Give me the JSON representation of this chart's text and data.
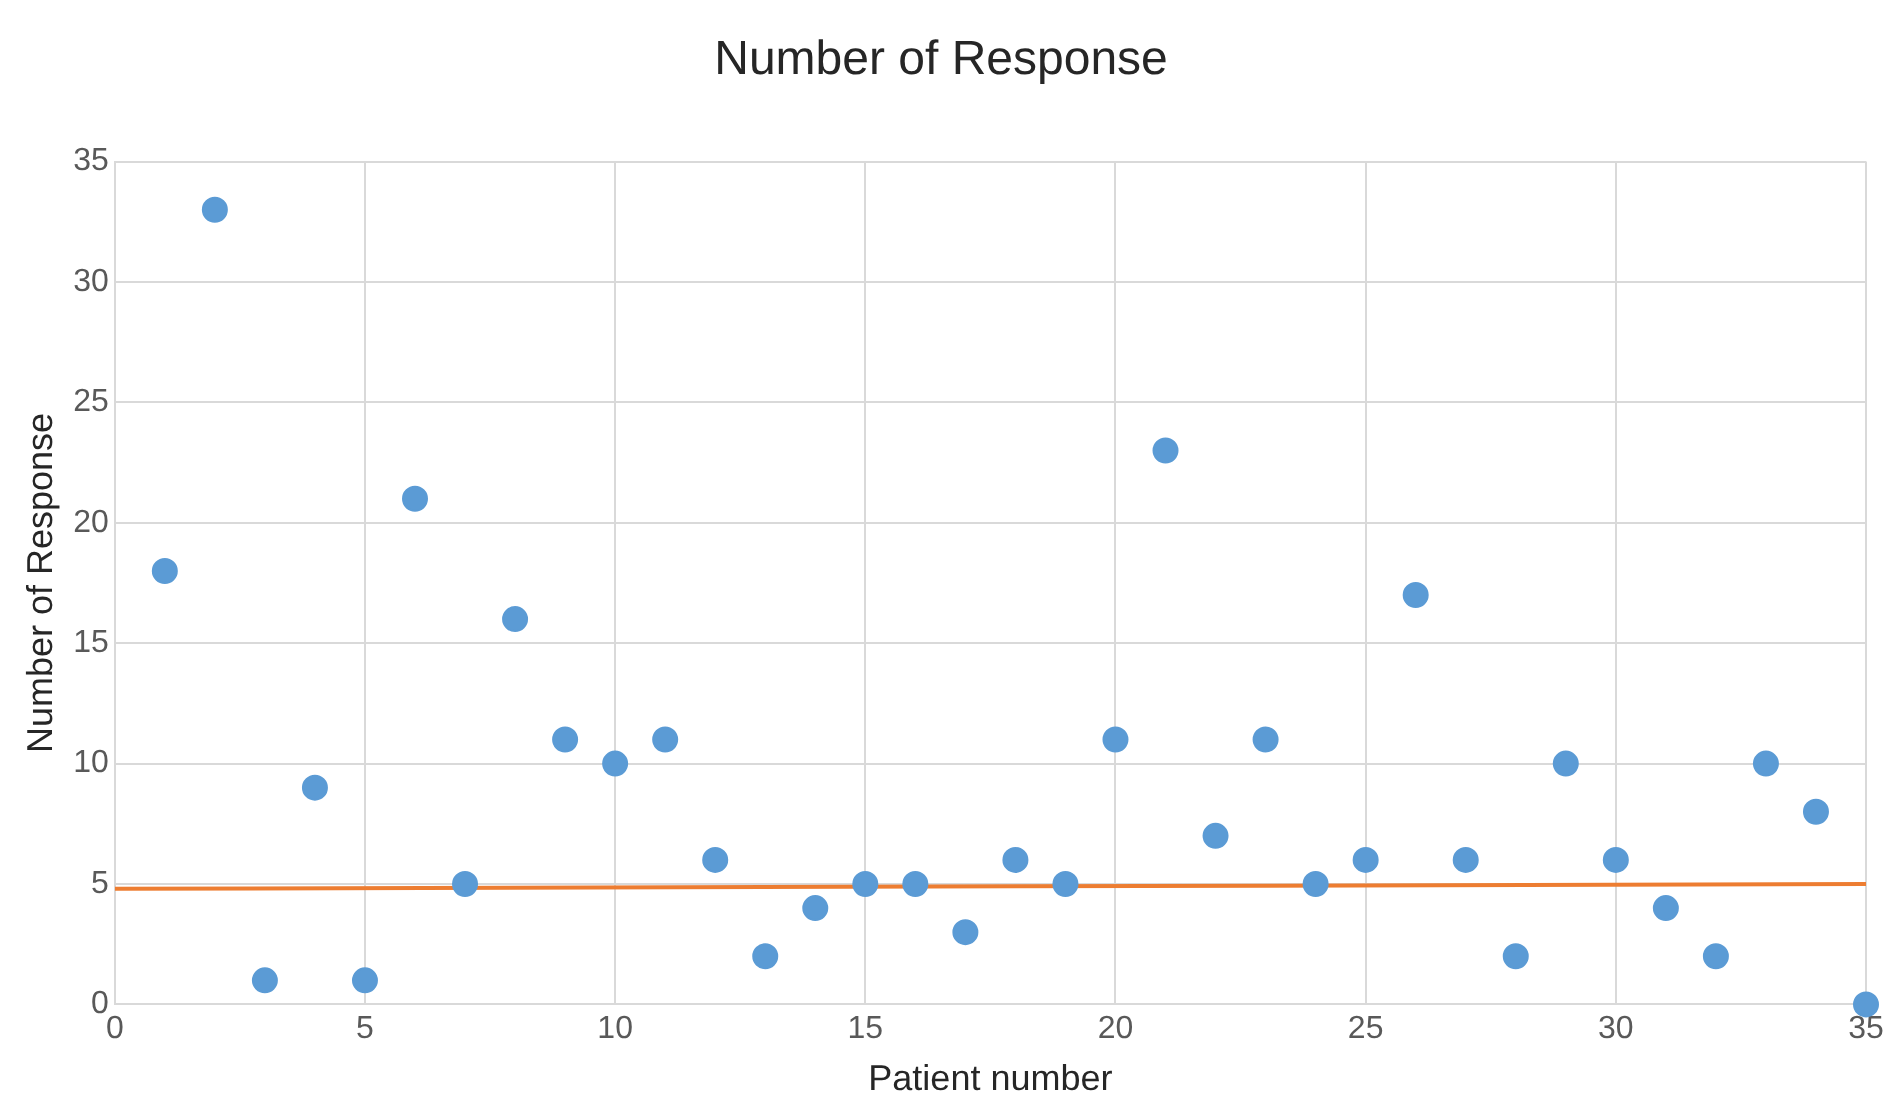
{
  "chart_data": {
    "type": "scatter",
    "title": "Number of Response",
    "xlabel": "Patient number",
    "ylabel": "Number of Response",
    "xlim": [
      0,
      35
    ],
    "xticks": [
      0,
      5,
      10,
      15,
      20,
      25,
      30,
      35
    ],
    "ylim": [
      0,
      35
    ],
    "yticks": [
      0,
      5,
      10,
      15,
      20,
      25,
      30,
      35
    ],
    "grid": true,
    "legend": false,
    "series": [
      {
        "marker": "circle",
        "color": "#5b9bd5",
        "x": [
          1,
          2,
          3,
          4,
          5,
          6,
          7,
          8,
          9,
          10,
          11,
          12,
          13,
          14,
          15,
          16,
          17,
          18,
          19,
          20,
          21,
          22,
          23,
          24,
          25,
          26,
          27,
          28,
          29,
          30,
          31,
          32,
          33,
          34,
          35
        ],
        "values": [
          18,
          33,
          1,
          9,
          1,
          21,
          5,
          16,
          11,
          10,
          11,
          6,
          2,
          4,
          5,
          5,
          3,
          6,
          5,
          11,
          23,
          7,
          11,
          5,
          6,
          17,
          6,
          2,
          10,
          6,
          4,
          2,
          10,
          8,
          0
        ]
      },
      {
        "type": "line",
        "color": "#ed7d31",
        "x": [
          0,
          35
        ],
        "values": [
          4.8,
          5.0
        ]
      }
    ]
  }
}
